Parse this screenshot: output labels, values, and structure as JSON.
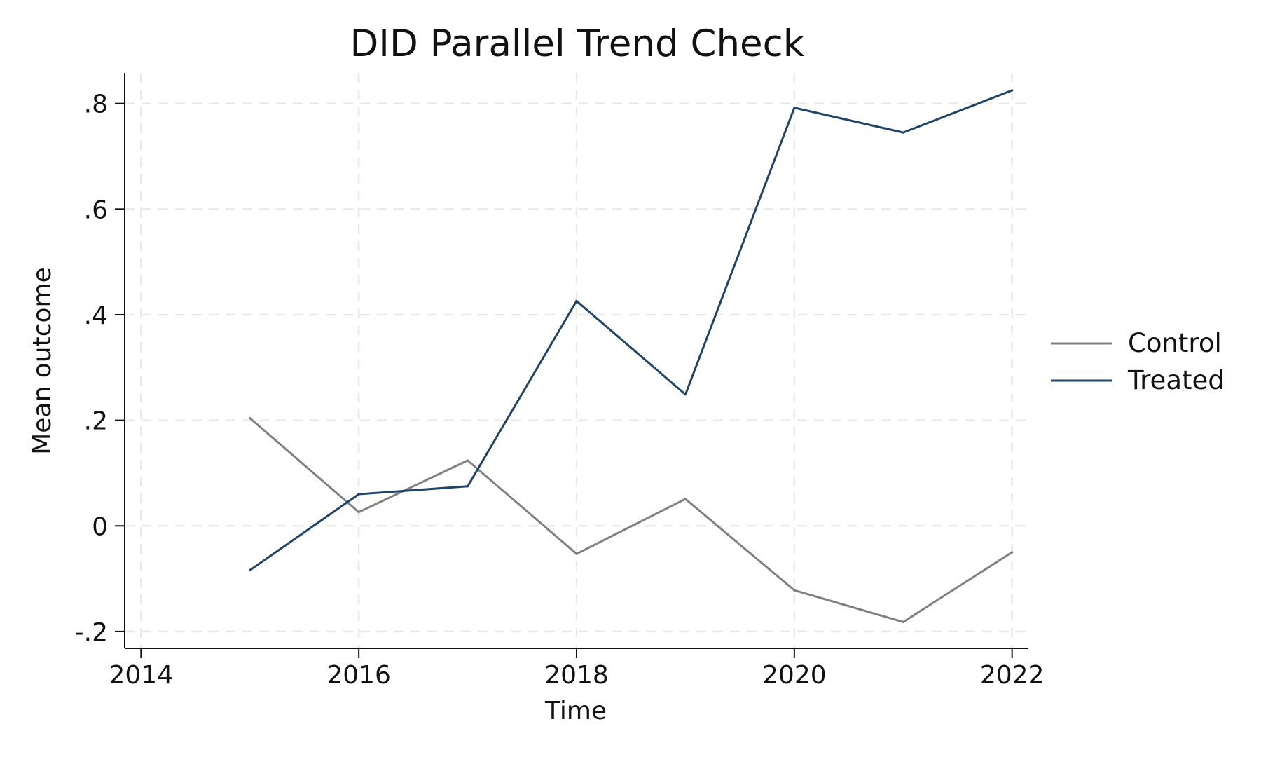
{
  "chart_data": {
    "type": "line",
    "title": "DID Parallel Trend Check",
    "xlabel": "Time",
    "ylabel": "Mean outcome",
    "x_ticks": [
      2014,
      2016,
      2018,
      2020,
      2022
    ],
    "x_tick_labels": [
      "2014",
      "2016",
      "2018",
      "2020",
      "2022"
    ],
    "y_ticks": [
      -0.2,
      0,
      0.2,
      0.4,
      0.6,
      0.8
    ],
    "y_tick_labels": [
      "-.2",
      "0",
      ".2",
      ".4",
      ".6",
      ".8"
    ],
    "xlim": [
      2013.85,
      2022.15
    ],
    "ylim": [
      -0.232,
      0.858
    ],
    "grid": true,
    "legend_position": "right",
    "x": [
      2015,
      2016,
      2017,
      2018,
      2019,
      2020,
      2021,
      2022
    ],
    "series": [
      {
        "name": "Control",
        "color": "#808080",
        "values": [
          0.204,
          0.026,
          0.124,
          -0.053,
          0.051,
          -0.122,
          -0.182,
          -0.05
        ]
      },
      {
        "name": "Treated",
        "color": "#1f4468",
        "values": [
          -0.084,
          0.06,
          0.075,
          0.426,
          0.249,
          0.792,
          0.745,
          0.825
        ]
      }
    ]
  }
}
